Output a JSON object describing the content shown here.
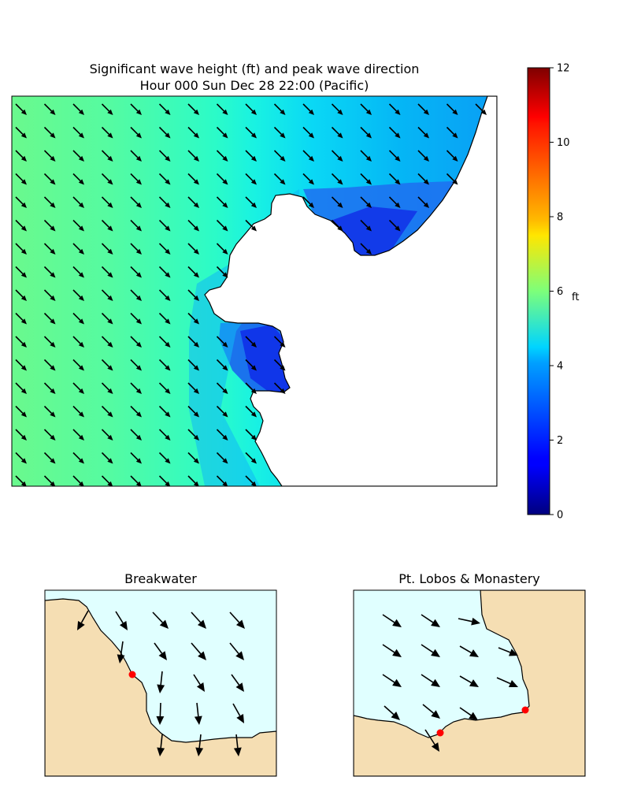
{
  "main_map": {
    "title_line1": "Significant wave height (ft) and peak wave direction",
    "title_line2": "Hour 000    Sun Dec 28 22:00 (Pacific)",
    "colorbar": {
      "label": "ft",
      "ticks": [
        "0",
        "2",
        "4",
        "6",
        "8",
        "10",
        "12"
      ],
      "range": [
        0,
        12
      ],
      "colormap": "jet"
    },
    "land_color": "#ffffff",
    "arrow_color": "#000000"
  },
  "insets": [
    {
      "title": "Breakwater",
      "water_color": "#e0ffff",
      "land_color": "#f5deb3",
      "marker_color": "#ff0000"
    },
    {
      "title": "Pt. Lobos & Monastery",
      "water_color": "#e0ffff",
      "land_color": "#f5deb3",
      "marker_color": "#ff0000"
    }
  ]
}
